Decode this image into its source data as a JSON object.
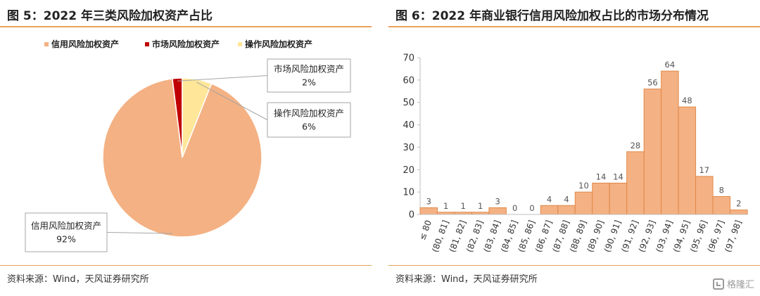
{
  "left": {
    "title": "图 5：2022 年三类风险加权资产占比",
    "source": "资料来源：Wind，天风证券研究所"
  },
  "right": {
    "title": "图 6：2022 年商业银行信用风险加权占比的市场分布情况",
    "source": "资料来源：Wind，天风证券研究所"
  },
  "watermark": {
    "text": "格隆汇",
    "icon": "gelonghui-logo-icon"
  },
  "chart_data": [
    {
      "type": "pie",
      "title": "图 5：2022 年三类风险加权资产占比",
      "legend_position": "top",
      "slices": [
        {
          "label": "信用风险加权资产",
          "value": 92,
          "value_label": "92%",
          "color": "#f4b183"
        },
        {
          "label": "市场风险加权资产",
          "value": 2,
          "value_label": "2%",
          "color": "#c00000"
        },
        {
          "label": "操作风险加权资产",
          "value": 6,
          "value_label": "6%",
          "color": "#ffe699"
        }
      ]
    },
    {
      "type": "bar",
      "title": "图 6：2022 年商业银行信用风险加权占比的市场分布情况",
      "categories": [
        "≤ 80",
        "(80, 81]",
        "(81, 82]",
        "(82, 83]",
        "(83, 84]",
        "(84, 85]",
        "(85, 86]",
        "(86, 87]",
        "(87, 88]",
        "(88, 89]",
        "(89, 90]",
        "(90, 91]",
        "(91, 92]",
        "(92, 93]",
        "(93, 94]",
        "(94, 95]",
        "(95, 96]",
        "(96, 97]",
        "(97, 98]"
      ],
      "values": [
        3,
        1,
        1,
        1,
        3,
        0,
        0,
        4,
        4,
        10,
        14,
        14,
        28,
        56,
        64,
        48,
        17,
        8,
        2
      ],
      "ylim": [
        0,
        70
      ],
      "yticks": [
        0,
        10,
        20,
        30,
        40,
        50,
        60,
        70
      ],
      "bar_color": "#f4b183",
      "bar_edge_color": "#e0894a",
      "grid": false,
      "legend": false
    }
  ]
}
